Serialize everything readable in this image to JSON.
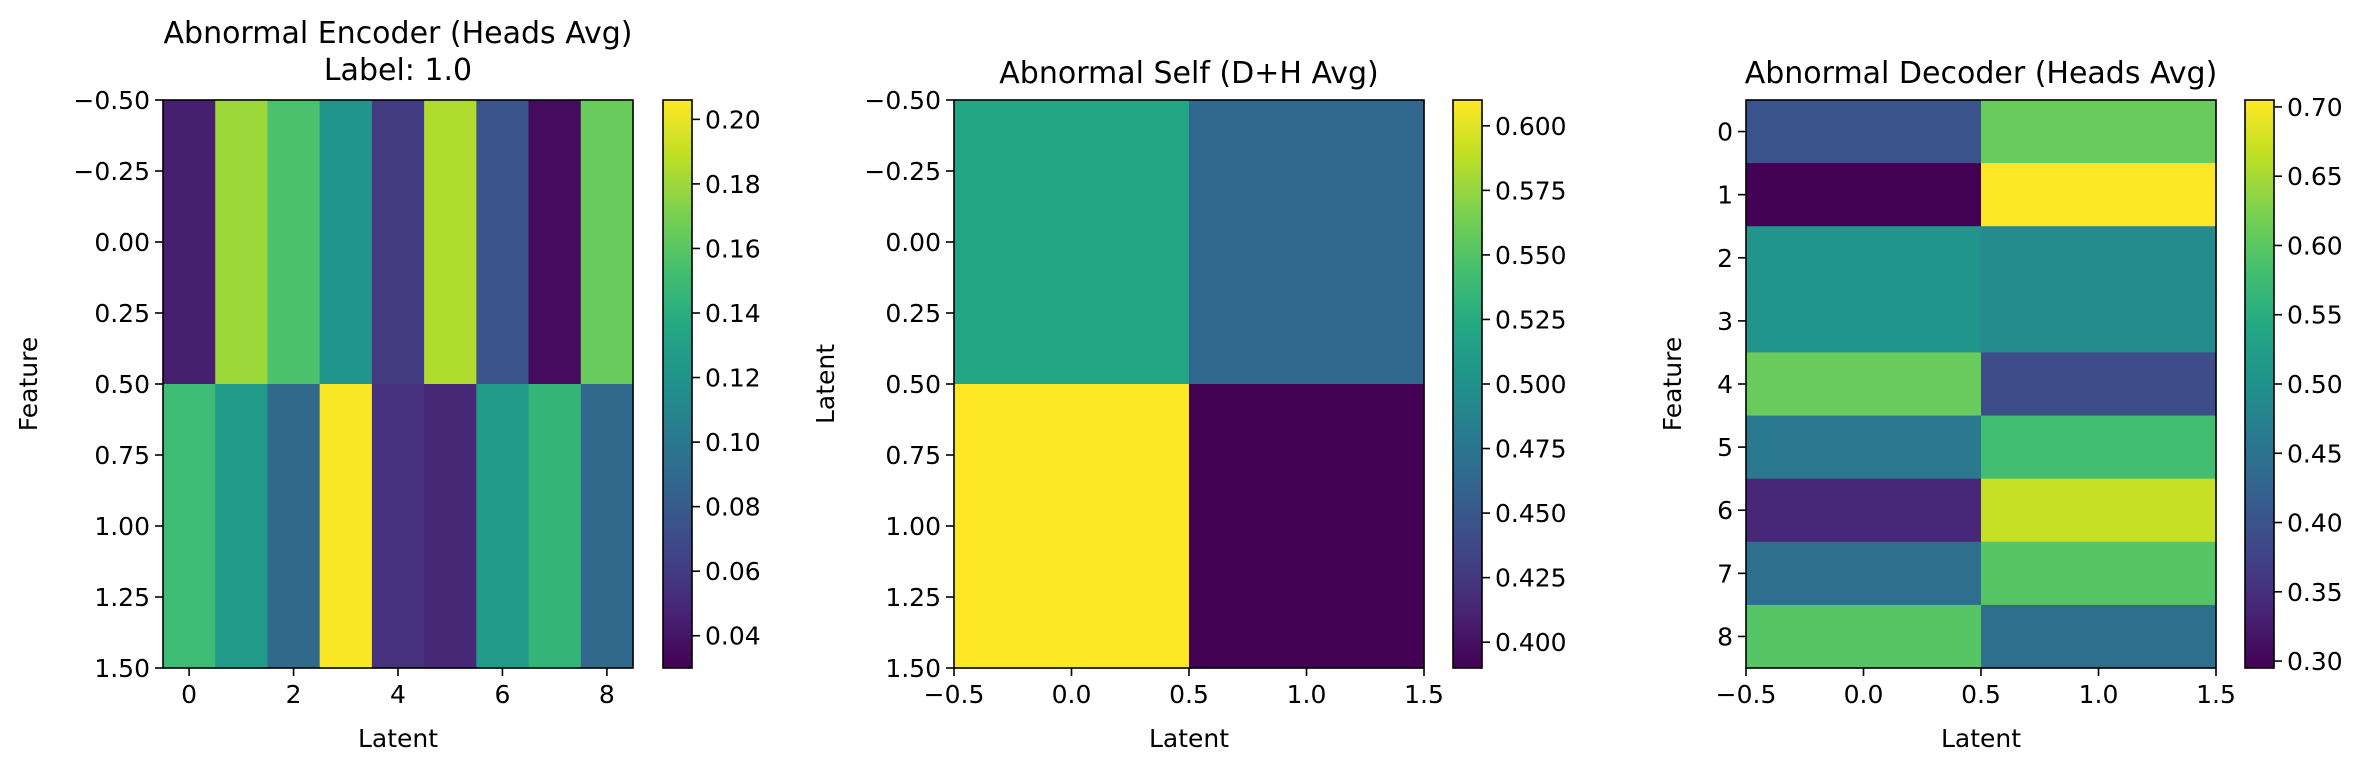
{
  "chart_data": [
    {
      "type": "heatmap",
      "title": "Abnormal Encoder (Heads Avg)",
      "subtitle": "Label: 1.0",
      "xlabel": "Latent",
      "ylabel": "Feature",
      "x_ticks": [
        "0",
        "2",
        "4",
        "6",
        "8"
      ],
      "y_ticks": [
        "−0.50",
        "−0.25",
        "0.00",
        "0.25",
        "0.50",
        "0.75",
        "1.00",
        "1.25",
        "1.50"
      ],
      "colorbar_ticks": [
        "0.04",
        "0.06",
        "0.08",
        "0.10",
        "0.12",
        "0.14",
        "0.16",
        "0.18",
        "0.20"
      ],
      "xlim": [
        -0.5,
        8.5
      ],
      "ylim": [
        1.5,
        -0.5
      ],
      "vmin": 0.03,
      "vmax": 0.206,
      "values": [
        [
          0.045,
          0.18,
          0.155,
          0.12,
          0.06,
          0.185,
          0.075,
          0.035,
          0.165
        ],
        [
          0.15,
          0.125,
          0.09,
          0.205,
          0.055,
          0.05,
          0.125,
          0.145,
          0.09
        ]
      ]
    },
    {
      "type": "heatmap",
      "title": "Abnormal Self (D+H Avg)",
      "xlabel": "Latent",
      "ylabel": "Latent",
      "x_ticks": [
        "−0.5",
        "0.0",
        "0.5",
        "1.0",
        "1.5"
      ],
      "y_ticks": [
        "−0.50",
        "−0.25",
        "0.00",
        "0.25",
        "0.50",
        "0.75",
        "1.00",
        "1.25",
        "1.50"
      ],
      "colorbar_ticks": [
        "0.400",
        "0.425",
        "0.450",
        "0.475",
        "0.500",
        "0.525",
        "0.550",
        "0.575",
        "0.600"
      ],
      "xlim": [
        -0.5,
        1.5
      ],
      "ylim": [
        1.5,
        -0.5
      ],
      "vmin": 0.39,
      "vmax": 0.61,
      "values": [
        [
          0.52,
          0.465
        ],
        [
          0.61,
          0.39
        ]
      ]
    },
    {
      "type": "heatmap",
      "title": "Abnormal Decoder (Heads Avg)",
      "xlabel": "Latent",
      "ylabel": "Feature",
      "x_ticks": [
        "−0.5",
        "0.0",
        "0.5",
        "1.0",
        "1.5"
      ],
      "y_ticks": [
        "0",
        "1",
        "2",
        "3",
        "4",
        "5",
        "6",
        "7",
        "8"
      ],
      "colorbar_ticks": [
        "0.30",
        "0.35",
        "0.40",
        "0.45",
        "0.50",
        "0.55",
        "0.60",
        "0.65",
        "0.70"
      ],
      "xlim": [
        -0.5,
        1.5
      ],
      "ylim": [
        8.5,
        -0.5
      ],
      "vmin": 0.295,
      "vmax": 0.705,
      "values": [
        [
          0.4,
          0.61
        ],
        [
          0.295,
          0.705
        ],
        [
          0.505,
          0.49
        ],
        [
          0.505,
          0.49
        ],
        [
          0.61,
          0.39
        ],
        [
          0.46,
          0.58
        ],
        [
          0.34,
          0.67
        ],
        [
          0.445,
          0.595
        ],
        [
          0.595,
          0.445
        ]
      ]
    }
  ]
}
